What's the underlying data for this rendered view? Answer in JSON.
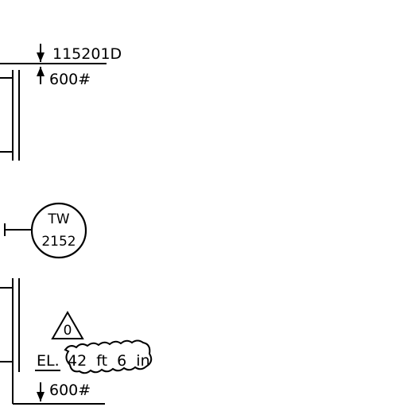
{
  "spec_top": "115201D",
  "rating_top": "600#",
  "instrument_tag": {
    "function": "TW",
    "number": "2152"
  },
  "revision_marker": "0",
  "elevation": {
    "prefix": "EL.",
    "value": "42  ft  6  in"
  },
  "rating_bottom": "600#"
}
